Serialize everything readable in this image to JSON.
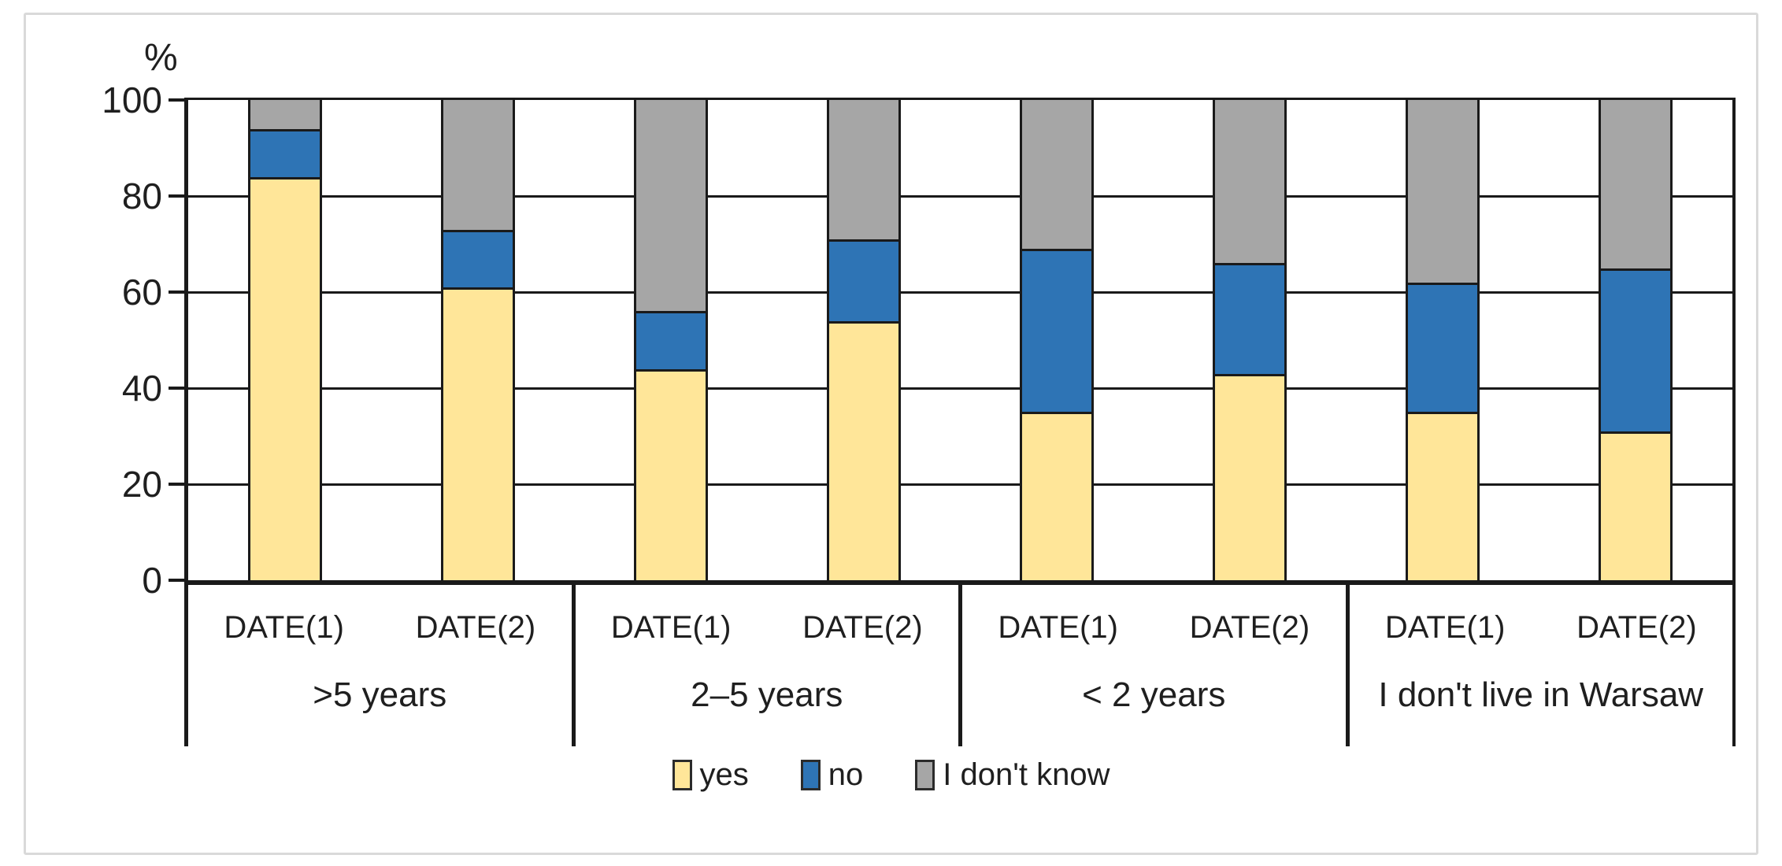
{
  "figure": {
    "unit_label": "%"
  },
  "chart_data": {
    "type": "bar",
    "stacked": true,
    "percent_stacked": true,
    "title": "",
    "xlabel": "",
    "ylabel": "%",
    "ylim": [
      0,
      100
    ],
    "yticks": [
      0,
      20,
      40,
      60,
      80,
      100
    ],
    "grid": "horizontal",
    "legend_position": "bottom",
    "groups": [
      ">5 years",
      "2–5 years",
      "< 2 years",
      "I don't live in Warsaw"
    ],
    "x_sublabels": [
      "DATE(1)",
      "DATE(2)"
    ],
    "bar_order_note": "8 bars: one per (group, sublabel) pair, left to right",
    "series": [
      {
        "name": "yes",
        "color": "#FFE699",
        "values": [
          84,
          61,
          44,
          54,
          35,
          43,
          35,
          31
        ]
      },
      {
        "name": "no",
        "color": "#2E74B5",
        "values": [
          10,
          12,
          12,
          17,
          34,
          23,
          27,
          34
        ]
      },
      {
        "name": "I don't know",
        "color": "#A6A6A6",
        "values": [
          6,
          27,
          44,
          29,
          31,
          34,
          38,
          35
        ]
      }
    ]
  }
}
